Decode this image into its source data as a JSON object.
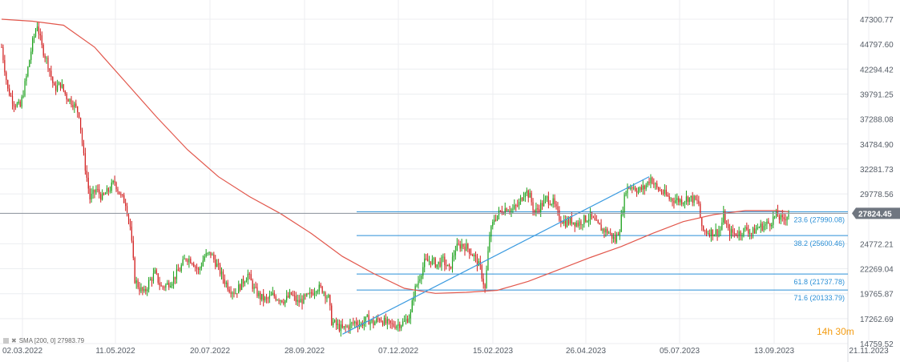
{
  "chart_data": {
    "type": "candlestick",
    "price_axis_ticks": [
      "47300.77",
      "44797.60",
      "42294.42",
      "39791.25",
      "37288.08",
      "34784.90",
      "32281.73",
      "29778.56",
      "24772.21",
      "22269.04",
      "19765.87",
      "17262.69",
      "14759.52"
    ],
    "date_axis_ticks": [
      "02.03.2022",
      "11.05.2022",
      "20.07.2022",
      "28.09.2022",
      "07.12.2022",
      "15.02.2023",
      "26.04.2023",
      "05.07.2023",
      "13.09.2023",
      "21.11.2023"
    ],
    "current_price": "27824.45",
    "ylim": [
      14759.52,
      48500
    ],
    "close_path": [
      {
        "t": 0,
        "v": 44500
      },
      {
        "t": 4,
        "v": 40200
      },
      {
        "t": 8,
        "v": 38900
      },
      {
        "t": 12,
        "v": 38500
      },
      {
        "t": 16,
        "v": 41500
      },
      {
        "t": 20,
        "v": 45000
      },
      {
        "t": 23,
        "v": 46800
      },
      {
        "t": 26,
        "v": 44500
      },
      {
        "t": 30,
        "v": 42800
      },
      {
        "t": 34,
        "v": 40300
      },
      {
        "t": 38,
        "v": 40800
      },
      {
        "t": 42,
        "v": 39500
      },
      {
        "t": 46,
        "v": 38900
      },
      {
        "t": 50,
        "v": 37800
      },
      {
        "t": 53,
        "v": 33500
      },
      {
        "t": 57,
        "v": 29300
      },
      {
        "t": 61,
        "v": 30200
      },
      {
        "t": 65,
        "v": 29400
      },
      {
        "t": 69,
        "v": 30100
      },
      {
        "t": 73,
        "v": 31000
      },
      {
        "t": 77,
        "v": 29500
      },
      {
        "t": 80,
        "v": 28900
      },
      {
        "t": 83,
        "v": 26500
      },
      {
        "t": 86,
        "v": 21200
      },
      {
        "t": 89,
        "v": 20300
      },
      {
        "t": 92,
        "v": 19800
      },
      {
        "t": 95,
        "v": 20900
      },
      {
        "t": 99,
        "v": 21800
      },
      {
        "t": 103,
        "v": 20400
      },
      {
        "t": 107,
        "v": 20700
      },
      {
        "t": 111,
        "v": 21300
      },
      {
        "t": 115,
        "v": 22200
      },
      {
        "t": 119,
        "v": 23400
      },
      {
        "t": 123,
        "v": 23100
      },
      {
        "t": 127,
        "v": 22000
      },
      {
        "t": 131,
        "v": 23500
      },
      {
        "t": 135,
        "v": 23800
      },
      {
        "t": 139,
        "v": 22600
      },
      {
        "t": 143,
        "v": 21300
      },
      {
        "t": 147,
        "v": 20300
      },
      {
        "t": 151,
        "v": 19900
      },
      {
        "t": 155,
        "v": 20800
      },
      {
        "t": 159,
        "v": 21700
      },
      {
        "t": 163,
        "v": 20200
      },
      {
        "t": 167,
        "v": 19400
      },
      {
        "t": 171,
        "v": 19100
      },
      {
        "t": 175,
        "v": 19600
      },
      {
        "t": 179,
        "v": 19300
      },
      {
        "t": 183,
        "v": 19100
      },
      {
        "t": 187,
        "v": 19700
      },
      {
        "t": 191,
        "v": 18900
      },
      {
        "t": 195,
        "v": 19200
      },
      {
        "t": 199,
        "v": 19600
      },
      {
        "t": 203,
        "v": 20400
      },
      {
        "t": 207,
        "v": 20200
      },
      {
        "t": 211,
        "v": 19300
      },
      {
        "t": 213,
        "v": 17000
      },
      {
        "t": 216,
        "v": 16600
      },
      {
        "t": 220,
        "v": 16200
      },
      {
        "t": 224,
        "v": 16500
      },
      {
        "t": 228,
        "v": 16900
      },
      {
        "t": 232,
        "v": 16700
      },
      {
        "t": 236,
        "v": 17200
      },
      {
        "t": 240,
        "v": 16800
      },
      {
        "t": 244,
        "v": 17300
      },
      {
        "t": 248,
        "v": 16800
      },
      {
        "t": 252,
        "v": 16600
      },
      {
        "t": 256,
        "v": 16700
      },
      {
        "t": 260,
        "v": 16900
      },
      {
        "t": 264,
        "v": 17700
      },
      {
        "t": 266,
        "v": 19800
      },
      {
        "t": 269,
        "v": 21100
      },
      {
        "t": 273,
        "v": 22900
      },
      {
        "t": 277,
        "v": 23100
      },
      {
        "t": 281,
        "v": 22700
      },
      {
        "t": 285,
        "v": 23100
      },
      {
        "t": 289,
        "v": 22100
      },
      {
        "t": 293,
        "v": 24300
      },
      {
        "t": 297,
        "v": 24700
      },
      {
        "t": 301,
        "v": 24300
      },
      {
        "t": 305,
        "v": 23500
      },
      {
        "t": 309,
        "v": 22300
      },
      {
        "t": 312,
        "v": 20200
      },
      {
        "t": 315,
        "v": 25600
      },
      {
        "t": 318,
        "v": 27300
      },
      {
        "t": 322,
        "v": 28000
      },
      {
        "t": 326,
        "v": 28400
      },
      {
        "t": 330,
        "v": 28200
      },
      {
        "t": 334,
        "v": 28800
      },
      {
        "t": 338,
        "v": 30200
      },
      {
        "t": 341,
        "v": 29500
      },
      {
        "t": 344,
        "v": 27900
      },
      {
        "t": 348,
        "v": 28600
      },
      {
        "t": 352,
        "v": 29300
      },
      {
        "t": 356,
        "v": 28900
      },
      {
        "t": 360,
        "v": 27400
      },
      {
        "t": 364,
        "v": 26900
      },
      {
        "t": 368,
        "v": 27100
      },
      {
        "t": 372,
        "v": 26800
      },
      {
        "t": 376,
        "v": 27200
      },
      {
        "t": 380,
        "v": 27500
      },
      {
        "t": 384,
        "v": 26700
      },
      {
        "t": 388,
        "v": 26200
      },
      {
        "t": 392,
        "v": 25900
      },
      {
        "t": 396,
        "v": 25100
      },
      {
        "t": 399,
        "v": 26400
      },
      {
        "t": 403,
        "v": 30300
      },
      {
        "t": 407,
        "v": 30600
      },
      {
        "t": 411,
        "v": 30100
      },
      {
        "t": 415,
        "v": 30400
      },
      {
        "t": 419,
        "v": 31400
      },
      {
        "t": 423,
        "v": 30300
      },
      {
        "t": 427,
        "v": 29900
      },
      {
        "t": 431,
        "v": 29300
      },
      {
        "t": 435,
        "v": 29200
      },
      {
        "t": 439,
        "v": 29100
      },
      {
        "t": 443,
        "v": 29400
      },
      {
        "t": 447,
        "v": 29200
      },
      {
        "t": 450,
        "v": 28800
      },
      {
        "t": 452,
        "v": 26100
      },
      {
        "t": 456,
        "v": 26000
      },
      {
        "t": 460,
        "v": 25900
      },
      {
        "t": 464,
        "v": 26200
      },
      {
        "t": 466,
        "v": 27600
      },
      {
        "t": 469,
        "v": 26000
      },
      {
        "t": 473,
        "v": 25800
      },
      {
        "t": 477,
        "v": 25900
      },
      {
        "t": 481,
        "v": 26300
      },
      {
        "t": 484,
        "v": 25800
      },
      {
        "t": 488,
        "v": 26400
      },
      {
        "t": 492,
        "v": 26600
      },
      {
        "t": 496,
        "v": 26900
      },
      {
        "t": 500,
        "v": 27700
      },
      {
        "t": 504,
        "v": 27100
      },
      {
        "t": 508,
        "v": 27824
      }
    ],
    "sma": {
      "name": "SMA [200, 0] 27983.79",
      "points": [
        {
          "t": 0,
          "v": 47300
        },
        {
          "t": 20,
          "v": 47100
        },
        {
          "t": 40,
          "v": 46700
        },
        {
          "t": 60,
          "v": 44500
        },
        {
          "t": 80,
          "v": 41000
        },
        {
          "t": 100,
          "v": 37500
        },
        {
          "t": 120,
          "v": 34200
        },
        {
          "t": 140,
          "v": 31500
        },
        {
          "t": 160,
          "v": 29500
        },
        {
          "t": 180,
          "v": 27800
        },
        {
          "t": 200,
          "v": 25800
        },
        {
          "t": 220,
          "v": 23500
        },
        {
          "t": 240,
          "v": 21800
        },
        {
          "t": 260,
          "v": 20300
        },
        {
          "t": 280,
          "v": 19800
        },
        {
          "t": 300,
          "v": 19900
        },
        {
          "t": 320,
          "v": 20100
        },
        {
          "t": 340,
          "v": 21000
        },
        {
          "t": 360,
          "v": 22200
        },
        {
          "t": 380,
          "v": 23400
        },
        {
          "t": 400,
          "v": 24500
        },
        {
          "t": 420,
          "v": 25800
        },
        {
          "t": 440,
          "v": 27000
        },
        {
          "t": 460,
          "v": 27700
        },
        {
          "t": 480,
          "v": 28100
        },
        {
          "t": 500,
          "v": 28100
        },
        {
          "t": 508,
          "v": 27984
        }
      ]
    },
    "fibonacci": [
      {
        "label": "23.6 (27990.08)",
        "value": 27990.08
      },
      {
        "label": "38.2 (25600.46)",
        "value": 25600.46
      },
      {
        "label": "61.8 (21737.78)",
        "value": 21737.78
      },
      {
        "label": "71.6 (20133.79)",
        "value": 20133.79
      }
    ],
    "trendline": [
      {
        "t": 220,
        "v": 15700
      },
      {
        "t": 418,
        "v": 31500
      }
    ],
    "grid": true
  },
  "legend": {
    "text": "SMA [200, 0] 27983.79"
  },
  "timer": {
    "hours": "14",
    "h_unit": "h",
    "minutes": "30",
    "m_unit": "m"
  },
  "colors": {
    "up": "#1aa01a",
    "down": "#d21f1f",
    "sma": "#e2574c",
    "fib": "#2a8fd6",
    "price_tag": "#6f7680"
  }
}
